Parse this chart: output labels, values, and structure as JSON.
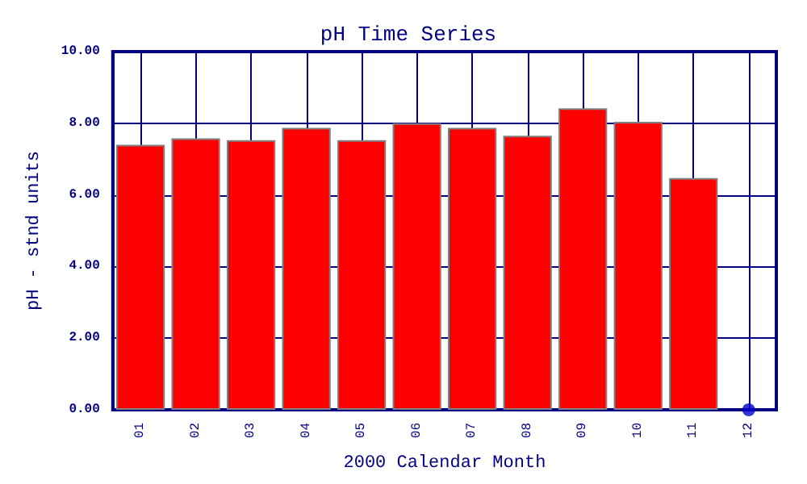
{
  "chart_data": {
    "type": "bar",
    "title": "pH Time Series",
    "xlabel": "2000 Calendar Month",
    "ylabel": "pH - stnd units",
    "categories": [
      "01",
      "02",
      "03",
      "04",
      "05",
      "06",
      "07",
      "08",
      "09",
      "10",
      "11",
      "12"
    ],
    "series": [
      {
        "color": "#ff0000",
        "values": [
          7.4,
          7.58,
          7.53,
          7.87,
          7.53,
          8.0,
          7.87,
          7.65,
          8.42,
          8.04,
          6.47,
          null
        ]
      },
      {
        "type": "scatter",
        "color": "#0000cc",
        "x": [
          "12"
        ],
        "values": [
          0
        ]
      }
    ],
    "ylim": [
      0,
      10
    ],
    "yticks": [
      {
        "value": 0,
        "label": "0.00"
      },
      {
        "value": 2,
        "label": "2.00"
      },
      {
        "value": 4,
        "label": "4.00"
      },
      {
        "value": 6,
        "label": "6.00"
      },
      {
        "value": 8,
        "label": "8.00"
      },
      {
        "value": 10,
        "label": "10.00"
      }
    ],
    "grid": true,
    "marker": "circle"
  }
}
